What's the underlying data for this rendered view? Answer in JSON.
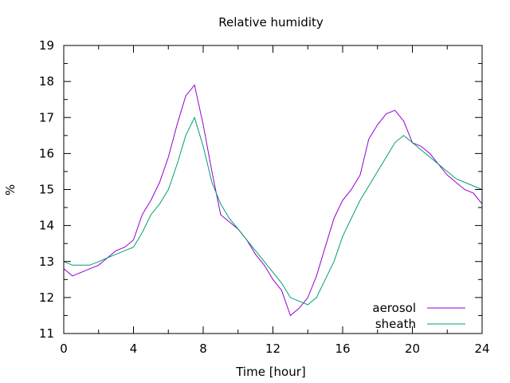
{
  "chart_data": {
    "type": "line",
    "title": "Relative humidity",
    "xlabel": "Time [hour]",
    "ylabel": "%",
    "xlim": [
      0,
      24
    ],
    "ylim": [
      11,
      19
    ],
    "x_ticks": [
      0,
      4,
      8,
      12,
      16,
      20,
      24
    ],
    "y_ticks": [
      11,
      12,
      13,
      14,
      15,
      16,
      17,
      18,
      19
    ],
    "grid": false,
    "legend_position": "bottom-right",
    "series": [
      {
        "name": "aerosol",
        "color": "#9400d3",
        "x": [
          0,
          0.5,
          1,
          1.5,
          2,
          2.5,
          3,
          3.5,
          4,
          4.5,
          5,
          5.5,
          6,
          6.5,
          7,
          7.5,
          8,
          8.5,
          9,
          9.5,
          10,
          10.5,
          11,
          11.5,
          12,
          12.5,
          13,
          13.5,
          14,
          14.5,
          15,
          15.5,
          16,
          16.5,
          17,
          17.5,
          18,
          18.5,
          19,
          19.5,
          20,
          20.5,
          21,
          21.5,
          22,
          22.5,
          23,
          23.5,
          24
        ],
        "y": [
          12.8,
          12.6,
          12.7,
          12.8,
          12.9,
          13.1,
          13.3,
          13.4,
          13.6,
          14.3,
          14.7,
          15.2,
          15.9,
          16.8,
          17.6,
          17.9,
          16.8,
          15.5,
          14.3,
          14.1,
          13.9,
          13.6,
          13.2,
          12.9,
          12.5,
          12.2,
          11.5,
          11.7,
          12.0,
          12.6,
          13.4,
          14.2,
          14.7,
          15.0,
          15.4,
          16.4,
          16.8,
          17.1,
          17.2,
          16.9,
          16.3,
          16.2,
          16.0,
          15.7,
          15.4,
          15.2,
          15.0,
          14.9,
          14.6
        ]
      },
      {
        "name": "sheath",
        "color": "#009e73",
        "x": [
          0,
          0.5,
          1,
          1.5,
          2,
          2.5,
          3,
          3.5,
          4,
          4.5,
          5,
          5.5,
          6,
          6.5,
          7,
          7.5,
          8,
          8.5,
          9,
          9.5,
          10,
          10.5,
          11,
          11.5,
          12,
          12.5,
          13,
          13.5,
          14,
          14.5,
          15,
          15.5,
          16,
          16.5,
          17,
          17.5,
          18,
          18.5,
          19,
          19.5,
          20,
          20.5,
          21,
          21.5,
          22,
          22.5,
          23,
          23.5,
          24
        ],
        "y": [
          13.0,
          12.9,
          12.9,
          12.9,
          13.0,
          13.1,
          13.2,
          13.3,
          13.4,
          13.8,
          14.3,
          14.6,
          15.0,
          15.7,
          16.5,
          17.0,
          16.2,
          15.2,
          14.6,
          14.2,
          13.9,
          13.6,
          13.3,
          13.0,
          12.7,
          12.4,
          12.0,
          11.9,
          11.8,
          12.0,
          12.5,
          13.0,
          13.7,
          14.2,
          14.7,
          15.1,
          15.5,
          15.9,
          16.3,
          16.5,
          16.3,
          16.1,
          15.9,
          15.7,
          15.5,
          15.3,
          15.2,
          15.1,
          15.0
        ]
      }
    ]
  }
}
